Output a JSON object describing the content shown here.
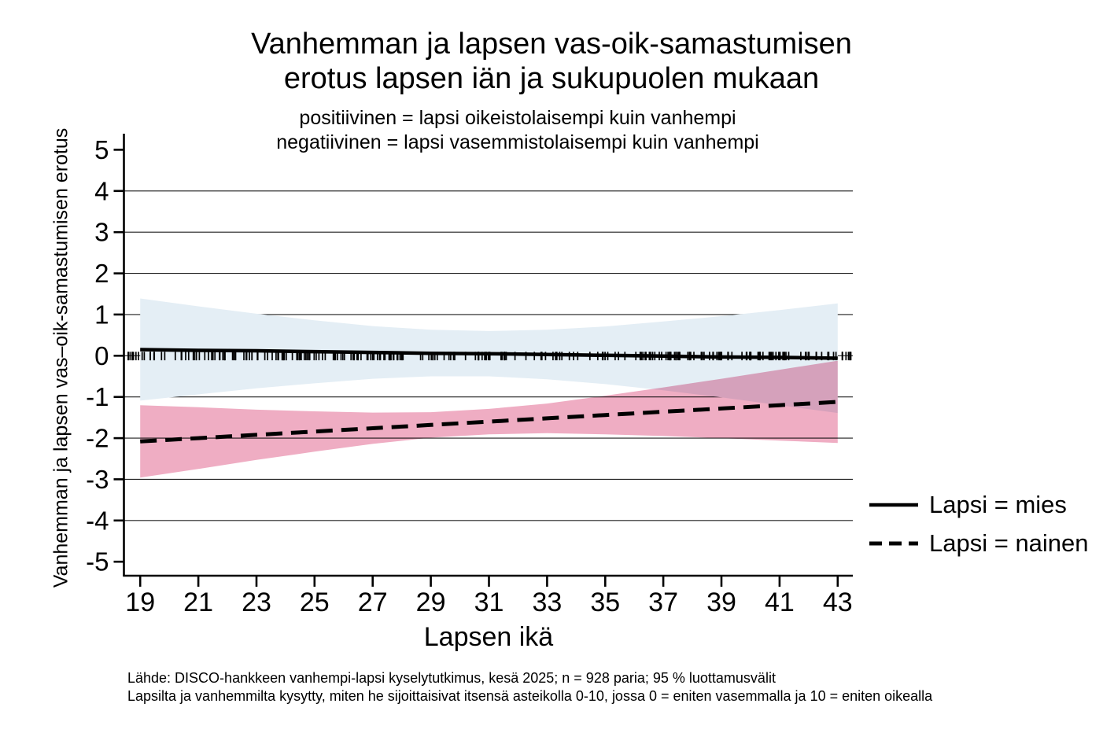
{
  "title": {
    "line1": "Vanhemman ja lapsen vas-oik-samastumisen",
    "line2": "erotus lapsen iän ja sukupuolen mukaan"
  },
  "subtitle": {
    "line1": "positiivinen = lapsi oikeistolaisempi kuin vanhempi",
    "line2": "negatiivinen = lapsi vasemmistolaisempi kuin vanhempi"
  },
  "axes": {
    "y_label": "Vanhemman ja lapsen vas–oik-samastumisen erotus",
    "x_label": "Lapsen ikä",
    "y_ticks": [
      5,
      4,
      3,
      2,
      1,
      0,
      -1,
      -2,
      -3,
      -4,
      -5
    ],
    "x_ticks": [
      19,
      21,
      23,
      25,
      27,
      29,
      31,
      33,
      35,
      37,
      39,
      41,
      43
    ],
    "gridline_values": [
      4,
      3,
      2,
      1,
      0,
      -1,
      -2,
      -3,
      -4
    ],
    "x_range": [
      18.44,
      43.52
    ],
    "y_range": [
      -5.34,
      5.39
    ]
  },
  "legend": {
    "items": [
      {
        "label": "Lapsi = mies",
        "style": "solid"
      },
      {
        "label": "Lapsi = nainen",
        "style": "dashed"
      }
    ]
  },
  "notes": {
    "line1": "Lähde: DISCO-hankkeen vanhempi-lapsi kyselytutkimus, kesä 2025; n = 928 paria; 95 % luottamusvälit",
    "line2": "Lapsilta ja vanhemmilta kysytty, miten he sijoittaisivat itsensä asteikolla 0-10, jossa 0 = eniten vasemmalla ja 10 = eniten oikealla"
  },
  "colors": {
    "line": "#000000",
    "grid": "#1f1f1f",
    "axis": "#000000",
    "mies_band": "#e4eef5",
    "nainen_band": "#efadc3",
    "background": "#ffffff"
  },
  "chart_data": {
    "type": "line",
    "title": "Vanhemman ja lapsen vas-oik-samastumisen erotus lapsen iän ja sukupuolen mukaan",
    "xlabel": "Lapsen ikä",
    "ylabel": "Vanhemman ja lapsen vas–oik-samastumisen erotus",
    "xlim": [
      19,
      43
    ],
    "ylim": [
      -5,
      5
    ],
    "grid": true,
    "legend_position": "right",
    "x": [
      19,
      21,
      23,
      25,
      27,
      29,
      31,
      33,
      35,
      37,
      39,
      41,
      43
    ],
    "series": [
      {
        "name": "Lapsi = mies",
        "style": "solid",
        "band_color": "#e4eef5",
        "band_blend": "",
        "values": [
          0.15,
          0.13,
          0.12,
          0.1,
          0.08,
          0.06,
          0.05,
          0.03,
          0.01,
          -0.01,
          -0.03,
          -0.04,
          -0.06
        ],
        "ci_upper": [
          1.39,
          1.2,
          1.02,
          0.86,
          0.72,
          0.63,
          0.6,
          0.63,
          0.71,
          0.83,
          0.96,
          1.11,
          1.27
        ],
        "ci_lower": [
          -1.09,
          -0.94,
          -0.79,
          -0.67,
          -0.56,
          -0.5,
          -0.5,
          -0.57,
          -0.69,
          -0.84,
          -1.01,
          -1.2,
          -1.39
        ]
      },
      {
        "name": "Lapsi = nainen",
        "style": "dashed",
        "band_color": "#efadc3",
        "band_blend": "multiply",
        "values": [
          -2.08,
          -2.0,
          -1.92,
          -1.84,
          -1.76,
          -1.68,
          -1.6,
          -1.52,
          -1.44,
          -1.36,
          -1.28,
          -1.2,
          -1.12
        ],
        "ci_upper": [
          -1.2,
          -1.25,
          -1.31,
          -1.35,
          -1.38,
          -1.37,
          -1.29,
          -1.16,
          -0.97,
          -0.77,
          -0.56,
          -0.34,
          -0.12
        ],
        "ci_lower": [
          -2.96,
          -2.75,
          -2.53,
          -2.33,
          -2.14,
          -1.99,
          -1.91,
          -1.88,
          -1.91,
          -1.95,
          -2.0,
          -2.06,
          -2.12
        ]
      }
    ],
    "rug": {
      "y": 0,
      "x_min": 18.5,
      "x_max": 43.5,
      "count": 260,
      "meaning": "yksittäiset havainnot (928 paria)"
    }
  }
}
